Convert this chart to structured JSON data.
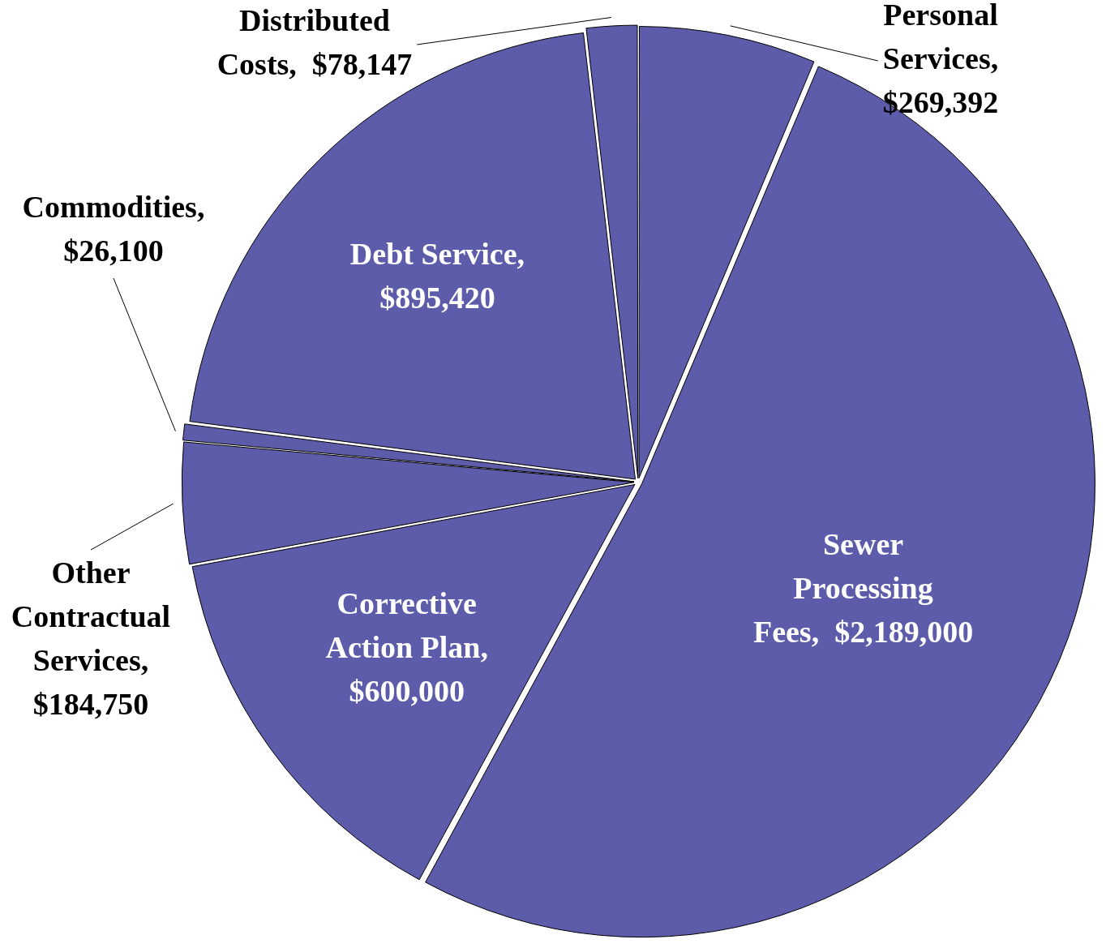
{
  "chart_data": {
    "type": "pie",
    "categories": [
      "Personal Services",
      "Sewer Processing Fees",
      "Corrective Action Plan",
      "Other Contractual Services",
      "Commodities",
      "Debt Service",
      "Distributed Costs"
    ],
    "values": [
      269392,
      2189000,
      600000,
      184750,
      26100,
      895420,
      78147
    ],
    "value_labels": [
      ", $269,392",
      ", $2,189,000",
      ", $600,000",
      ", $184,750",
      ", $26,100",
      ", $895,420",
      ", $78,147"
    ],
    "colors": [
      "#5c5caa",
      "#5c5caa",
      "#5c5caa",
      "#5c5caa",
      "#5c5caa",
      "#5c5caa",
      "#5c5caa"
    ],
    "legend": false
  }
}
